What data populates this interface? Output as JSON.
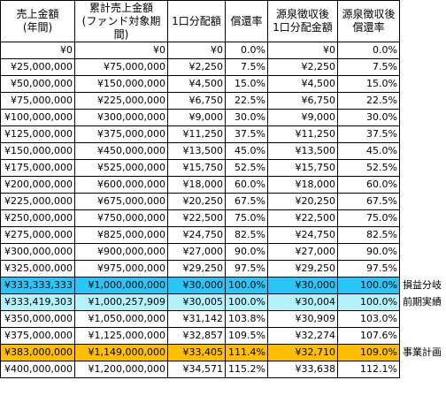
{
  "headers": [
    "売上金額\n(年間)",
    "累計売上金額\n(ファンド対象期間)",
    "1口分配額",
    "償還率",
    "源泉徴収後\n1口分配金額",
    "源泉徴収後\n償還率"
  ],
  "rows": [
    {
      "cells": [
        "¥0",
        "¥0",
        "¥0",
        "0.0%",
        "¥0",
        "0.0%"
      ],
      "note": "",
      "highlight": ""
    },
    {
      "cells": [
        "¥25,000,000",
        "¥75,000,000",
        "¥2,250",
        "7.5%",
        "¥2,250",
        "7.5%"
      ],
      "note": "",
      "highlight": ""
    },
    {
      "cells": [
        "¥50,000,000",
        "¥150,000,000",
        "¥4,500",
        "15.0%",
        "¥4,500",
        "15.0%"
      ],
      "note": "",
      "highlight": ""
    },
    {
      "cells": [
        "¥75,000,000",
        "¥225,000,000",
        "¥6,750",
        "22.5%",
        "¥6,750",
        "22.5%"
      ],
      "note": "",
      "highlight": ""
    },
    {
      "cells": [
        "¥100,000,000",
        "¥300,000,000",
        "¥9,000",
        "30.0%",
        "¥9,000",
        "30.0%"
      ],
      "note": "",
      "highlight": ""
    },
    {
      "cells": [
        "¥125,000,000",
        "¥375,000,000",
        "¥11,250",
        "37.5%",
        "¥11,250",
        "37.5%"
      ],
      "note": "",
      "highlight": ""
    },
    {
      "cells": [
        "¥150,000,000",
        "¥450,000,000",
        "¥13,500",
        "45.0%",
        "¥13,500",
        "45.0%"
      ],
      "note": "",
      "highlight": ""
    },
    {
      "cells": [
        "¥175,000,000",
        "¥525,000,000",
        "¥15,750",
        "52.5%",
        "¥15,750",
        "52.5%"
      ],
      "note": "",
      "highlight": ""
    },
    {
      "cells": [
        "¥200,000,000",
        "¥600,000,000",
        "¥18,000",
        "60.0%",
        "¥18,000",
        "60.0%"
      ],
      "note": "",
      "highlight": ""
    },
    {
      "cells": [
        "¥225,000,000",
        "¥675,000,000",
        "¥20,250",
        "67.5%",
        "¥20,250",
        "67.5%"
      ],
      "note": "",
      "highlight": ""
    },
    {
      "cells": [
        "¥250,000,000",
        "¥750,000,000",
        "¥22,500",
        "75.0%",
        "¥22,500",
        "75.0%"
      ],
      "note": "",
      "highlight": ""
    },
    {
      "cells": [
        "¥275,000,000",
        "¥825,000,000",
        "¥24,750",
        "82.5%",
        "¥24,750",
        "82.5%"
      ],
      "note": "",
      "highlight": ""
    },
    {
      "cells": [
        "¥300,000,000",
        "¥900,000,000",
        "¥27,000",
        "90.0%",
        "¥27,000",
        "90.0%"
      ],
      "note": "",
      "highlight": ""
    },
    {
      "cells": [
        "¥325,000,000",
        "¥975,000,000",
        "¥29,250",
        "97.5%",
        "¥29,250",
        "97.5%"
      ],
      "note": "",
      "highlight": ""
    },
    {
      "cells": [
        "¥333,333,333",
        "¥1,000,000,000",
        "¥30,000",
        "100.0%",
        "¥30,000",
        "100.0%"
      ],
      "note": "損益分岐",
      "highlight": "#29c5f6"
    },
    {
      "cells": [
        "¥333,419,303",
        "¥1,000,257,909",
        "¥30,005",
        "100.0%",
        "¥30,004",
        "100.0%"
      ],
      "note": "前期実績",
      "highlight": "#b3f2fb"
    },
    {
      "cells": [
        "¥350,000,000",
        "¥1,050,000,000",
        "¥31,142",
        "103.8%",
        "¥30,909",
        "103.0%"
      ],
      "note": "",
      "highlight": ""
    },
    {
      "cells": [
        "¥375,000,000",
        "¥1,125,000,000",
        "¥32,857",
        "109.5%",
        "¥32,274",
        "107.6%"
      ],
      "note": "",
      "highlight": ""
    },
    {
      "cells": [
        "¥383,000,000",
        "¥1,149,000,000",
        "¥33,405",
        "111.4%",
        "¥32,710",
        "109.0%"
      ],
      "note": "事業計画",
      "highlight": "#ffbf00"
    },
    {
      "cells": [
        "¥400,000,000",
        "¥1,200,000,000",
        "¥34,571",
        "115.2%",
        "¥33,638",
        "112.1%"
      ],
      "note": "",
      "highlight": ""
    }
  ]
}
